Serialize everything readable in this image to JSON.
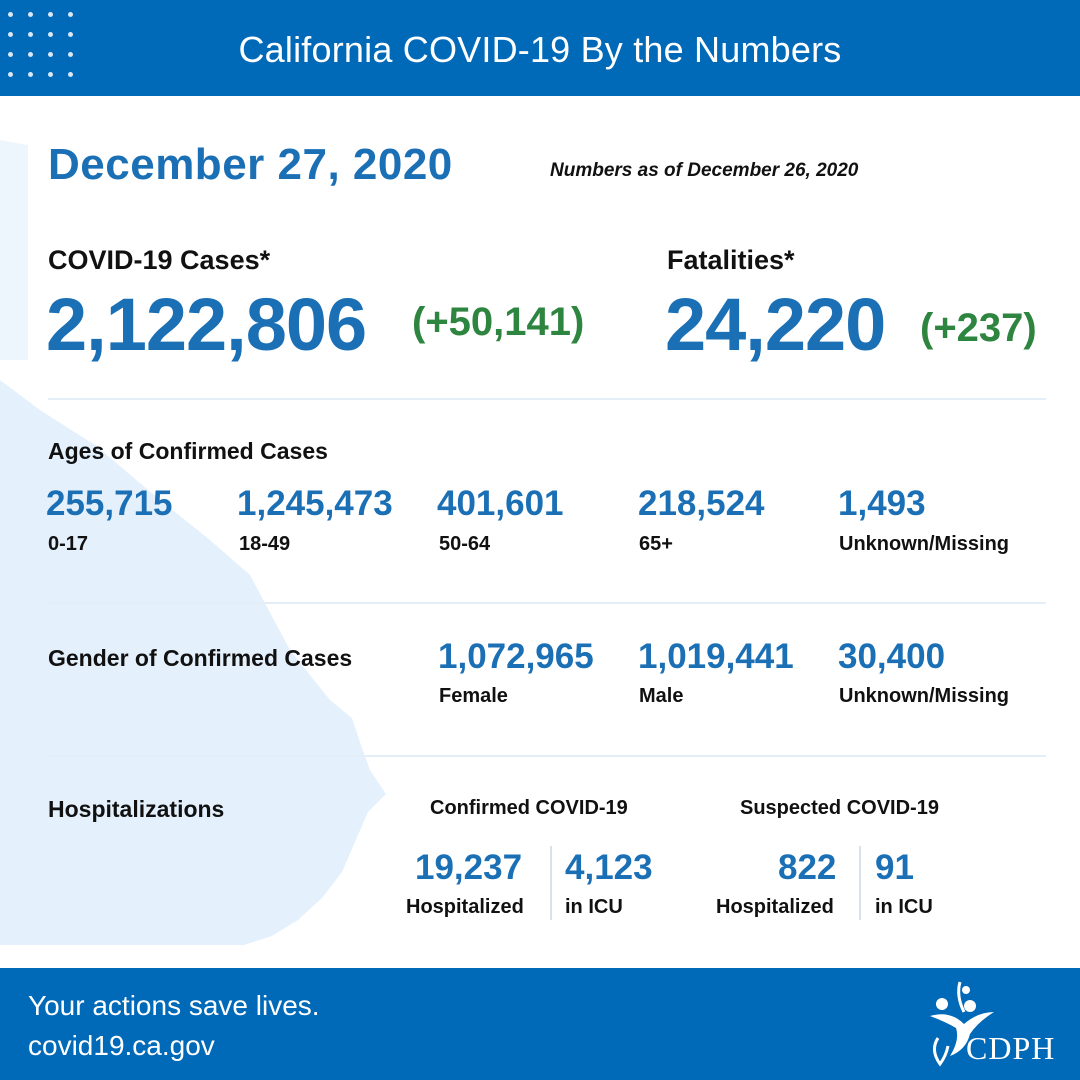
{
  "header": {
    "title": "California COVID-19 By the Numbers",
    "decoration_icon": "dot-grid-icon"
  },
  "date": "December 27, 2020",
  "numbers_as_of": "Numbers as of December 26, 2020",
  "cases": {
    "label": "COVID-19 Cases*",
    "total": "2,122,806",
    "new": "(+50,141)"
  },
  "fatalities": {
    "label": "Fatalities*",
    "total": "24,220",
    "new": "(+237)"
  },
  "ages": {
    "title": "Ages of Confirmed Cases",
    "groups": [
      {
        "value": "255,715",
        "label": "0-17"
      },
      {
        "value": "1,245,473",
        "label": "18-49"
      },
      {
        "value": "401,601",
        "label": "50-64"
      },
      {
        "value": "218,524",
        "label": "65+"
      },
      {
        "value": "1,493",
        "label": "Unknown/Missing"
      }
    ]
  },
  "gender": {
    "title": "Gender of Confirmed Cases",
    "groups": [
      {
        "value": "1,072,965",
        "label": "Female"
      },
      {
        "value": "1,019,441",
        "label": "Male"
      },
      {
        "value": "30,400",
        "label": "Unknown/Missing"
      }
    ]
  },
  "hospitalizations": {
    "title": "Hospitalizations",
    "confirmed": {
      "heading": "Confirmed COVID-19",
      "hospitalized_value": "19,237",
      "hospitalized_label": "Hospitalized",
      "icu_value": "4,123",
      "icu_label": "in ICU"
    },
    "suspected": {
      "heading": "Suspected COVID-19",
      "hospitalized_value": "822",
      "hospitalized_label": "Hospitalized",
      "icu_value": "91",
      "icu_label": "in ICU"
    }
  },
  "footer": {
    "line1": "Your actions save lives.",
    "line2": "covid19.ca.gov",
    "logo_text": "CDPH",
    "logo_icon": "cdph-figures-logo-icon"
  },
  "colors": {
    "brand_blue": "#0069b8",
    "value_blue": "#1a6fb5",
    "increase_green": "#2e8540",
    "map_fill": "#e4f1fc"
  }
}
